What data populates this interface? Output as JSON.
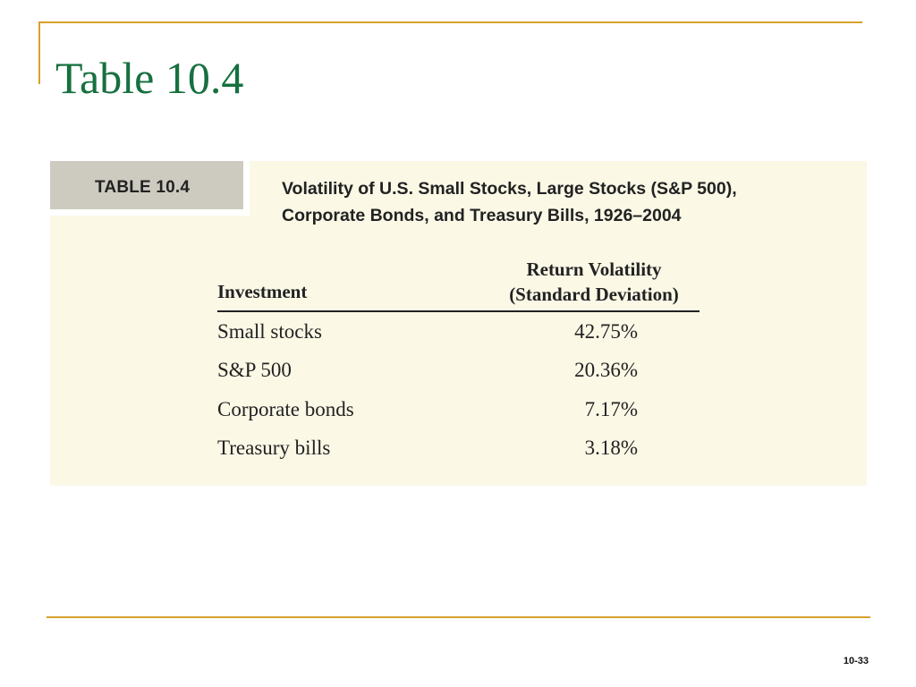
{
  "slide": {
    "title": "Table 10.4",
    "page_number": "10-33",
    "accent_color": "#d7a02a",
    "title_color": "#17703f"
  },
  "table": {
    "tab_label": "TABLE 10.4",
    "caption_line1": "Volatility of U.S. Small Stocks, Large Stocks (S&P 500),",
    "caption_line2": "Corporate Bonds, and Treasury Bills, 1926–2004",
    "columns": {
      "investment": "Investment",
      "volatility_line1": "Return Volatility",
      "volatility_line2": "(Standard Deviation)"
    },
    "rows": [
      {
        "investment": "Small stocks",
        "volatility": "42.75%"
      },
      {
        "investment": "S&P 500",
        "volatility": "20.36%"
      },
      {
        "investment": "Corporate bonds",
        "volatility": "7.17%"
      },
      {
        "investment": "Treasury bills",
        "volatility": "3.18%"
      }
    ]
  }
}
